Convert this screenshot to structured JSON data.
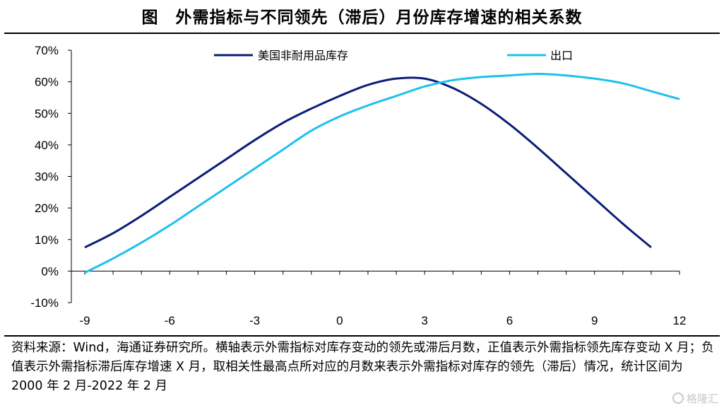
{
  "title": "图　外需指标与不同领先（滞后）月份库存增速的相关系数",
  "chart_data": {
    "type": "line",
    "title": "图　外需指标与不同领先（滞后）月份库存增速的相关系数",
    "x": [
      -9,
      -8,
      -7,
      -6,
      -5,
      -4,
      -3,
      -2,
      -1,
      0,
      1,
      2,
      3,
      4,
      5,
      6,
      7,
      8,
      9,
      10,
      11,
      12
    ],
    "series": [
      {
        "name": "美国非耐用品库存",
        "color": "#0b1d78",
        "values": [
          7.5,
          12,
          17.5,
          23.5,
          29.5,
          35.5,
          41.5,
          47,
          51.5,
          55.5,
          59,
          61,
          61,
          58,
          53,
          46.5,
          39,
          31,
          23,
          15,
          7.5,
          null
        ]
      },
      {
        "name": "出口",
        "color": "#1ec0ee",
        "values": [
          -0.5,
          4,
          9,
          14.5,
          20.5,
          26.5,
          32.5,
          38.5,
          44.5,
          49,
          52.5,
          55.5,
          58.5,
          60.5,
          61.5,
          62,
          62.5,
          62,
          61,
          59.5,
          57,
          54.5
        ]
      }
    ],
    "xticks": [
      "-9",
      "-6",
      "-3",
      "0",
      "3",
      "6",
      "9",
      "12"
    ],
    "yticks": [
      "70%",
      "60%",
      "50%",
      "40%",
      "30%",
      "20%",
      "10%",
      "0%",
      "-10%"
    ],
    "xlim": [
      -9,
      12
    ],
    "ylim": [
      -10,
      70
    ],
    "xlabel": "",
    "ylabel": "",
    "grid": false,
    "legend": "top"
  },
  "source": "资料来源：Wind，海通证券研究所。横轴表示外需指标对库存变动的领先或滞后月数，正值表示外需指标领先库存变动 X 月；负值表示外需指标滞后库存增速 X 月，取相关性最高点所对应的月数来表示外需指标对库存的领先（滞后）情况，统计区间为 2000 年 2 月-2022 年 2 月",
  "watermark": "格隆汇"
}
